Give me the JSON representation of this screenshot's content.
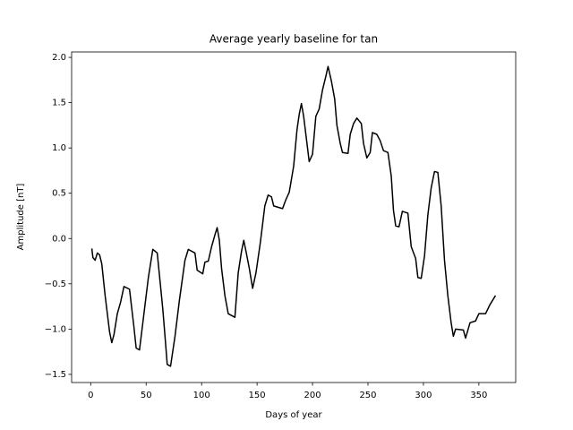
{
  "chart_data": {
    "type": "line",
    "title": "Average yearly baseline for tan",
    "x_label": "Days of year",
    "y_label": "Amplitude [nT]",
    "color": "#000000",
    "x": [
      1,
      2,
      4,
      6,
      8,
      10,
      13,
      17,
      19,
      21,
      24,
      27,
      30,
      35,
      39,
      41,
      44,
      48,
      52,
      56,
      60,
      63,
      65,
      67,
      69,
      72,
      76,
      80,
      85,
      88,
      94,
      96,
      101,
      103,
      106,
      109,
      112,
      114,
      116,
      118,
      121,
      124,
      130,
      133,
      136,
      138,
      140,
      143,
      146,
      149,
      153,
      157,
      160,
      163,
      165,
      173,
      176,
      179,
      183,
      186,
      188,
      190,
      192,
      195,
      197,
      200,
      203,
      206,
      209,
      212,
      214,
      217,
      220,
      222,
      225,
      227,
      232,
      234,
      237,
      240,
      244,
      246,
      249,
      252,
      254,
      258,
      261,
      264,
      268,
      271,
      273,
      275,
      278,
      281,
      286,
      289,
      293,
      295,
      298,
      301,
      304,
      307,
      310,
      313,
      316,
      319,
      322,
      325,
      327,
      329,
      336,
      338,
      342,
      347,
      350,
      356,
      360,
      365
    ],
    "values": [
      -0.11,
      -0.21,
      -0.24,
      -0.16,
      -0.18,
      -0.28,
      -0.63,
      -1.03,
      -1.15,
      -1.06,
      -0.83,
      -0.7,
      -0.53,
      -0.56,
      -0.98,
      -1.21,
      -1.23,
      -0.83,
      -0.43,
      -0.12,
      -0.16,
      -0.53,
      -0.78,
      -1.08,
      -1.39,
      -1.41,
      -1.08,
      -0.68,
      -0.24,
      -0.12,
      -0.16,
      -0.35,
      -0.39,
      -0.26,
      -0.25,
      -0.09,
      0.04,
      0.12,
      -0.02,
      -0.33,
      -0.63,
      -0.83,
      -0.87,
      -0.38,
      -0.14,
      -0.02,
      -0.14,
      -0.33,
      -0.55,
      -0.38,
      -0.04,
      0.36,
      0.48,
      0.46,
      0.36,
      0.33,
      0.43,
      0.51,
      0.8,
      1.2,
      1.37,
      1.49,
      1.35,
      1.05,
      0.85,
      0.93,
      1.35,
      1.43,
      1.64,
      1.79,
      1.9,
      1.74,
      1.54,
      1.25,
      1.05,
      0.95,
      0.94,
      1.15,
      1.27,
      1.33,
      1.27,
      1.05,
      0.89,
      0.95,
      1.17,
      1.15,
      1.08,
      0.97,
      0.95,
      0.69,
      0.31,
      0.14,
      0.13,
      0.3,
      0.28,
      -0.09,
      -0.22,
      -0.43,
      -0.44,
      -0.19,
      0.26,
      0.56,
      0.74,
      0.73,
      0.36,
      -0.24,
      -0.63,
      -0.93,
      -1.08,
      -1.0,
      -1.01,
      -1.1,
      -0.93,
      -0.91,
      -0.83,
      -0.83,
      -0.73,
      -0.63
    ],
    "xlim": [
      -17.2,
      383.2
    ],
    "ylim": [
      -1.59,
      2.06
    ],
    "xticks": [
      0,
      50,
      100,
      150,
      200,
      250,
      300,
      350
    ],
    "yticks": [
      {
        "value": -1.5,
        "label": "−1.5"
      },
      {
        "value": -1.0,
        "label": "−1.0"
      },
      {
        "value": -0.5,
        "label": "−0.5"
      },
      {
        "value": 0,
        "label": "0.0"
      },
      0.5,
      {
        "value": 1.0,
        "label": "1.0"
      },
      1.5,
      {
        "value": 2.0,
        "label": "2.0"
      }
    ]
  }
}
